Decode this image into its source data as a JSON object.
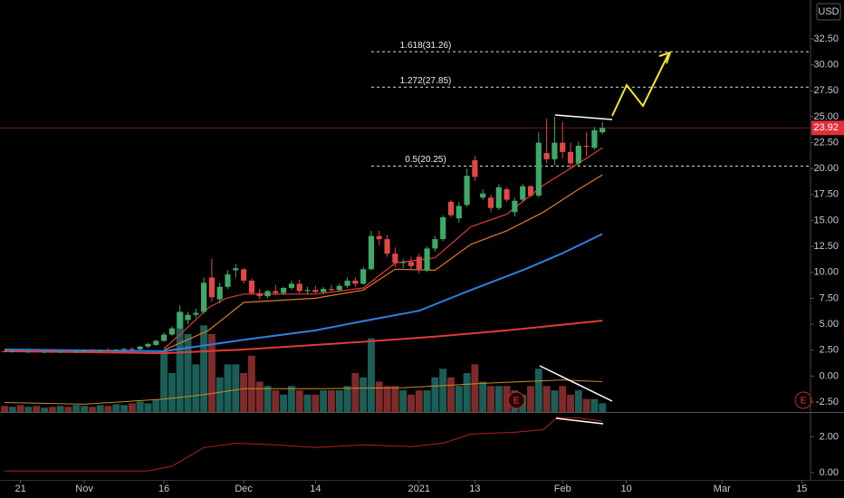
{
  "header": {
    "currency": "USD"
  },
  "chart_data": {
    "type": "candlestick",
    "xlim": [
      -0.57,
      101.1
    ],
    "xticks": [
      {
        "value": 2,
        "label": "21"
      },
      {
        "value": 10,
        "label": "Nov"
      },
      {
        "value": 20,
        "label": "16"
      },
      {
        "value": 30,
        "label": "Dec"
      },
      {
        "value": 39,
        "label": "14"
      },
      {
        "value": 52,
        "label": "2021"
      },
      {
        "value": 59,
        "label": "13"
      },
      {
        "value": 70,
        "label": "Feb"
      },
      {
        "value": 78,
        "label": "10"
      },
      {
        "value": 90,
        "label": "Mar"
      },
      {
        "value": 100,
        "label": "15"
      }
    ],
    "ylim": [
      -3.46,
      36.25
    ],
    "yticks": [
      {
        "value": -2.5,
        "label": "-2.50"
      },
      {
        "value": 0,
        "label": "0.00"
      },
      {
        "value": 2.5,
        "label": "2.50"
      },
      {
        "value": 5,
        "label": "5.00"
      },
      {
        "value": 7.5,
        "label": "7.50"
      },
      {
        "value": 10,
        "label": "10.00"
      },
      {
        "value": 12.5,
        "label": "12.50"
      },
      {
        "value": 15,
        "label": "15.00"
      },
      {
        "value": 17.5,
        "label": "17.50"
      },
      {
        "value": 20,
        "label": "20.00"
      },
      {
        "value": 22.5,
        "label": "22.50"
      },
      {
        "value": 25,
        "label": "25.00"
      },
      {
        "value": 27.5,
        "label": "27.50"
      },
      {
        "value": 30,
        "label": "30.00"
      },
      {
        "value": 32.5,
        "label": "32.50"
      }
    ],
    "up_color": "#3fa968",
    "down_color": "#e04848",
    "volume_up_color": "#1b5e57",
    "volume_down_color": "#7f2a2a",
    "candles": [
      [
        2.4,
        2.5,
        2.3,
        2.35
      ],
      [
        2.35,
        2.45,
        2.25,
        2.4
      ],
      [
        2.4,
        2.5,
        2.3,
        2.32
      ],
      [
        2.32,
        2.42,
        2.22,
        2.38
      ],
      [
        2.38,
        2.48,
        2.28,
        2.3
      ],
      [
        2.3,
        2.4,
        2.2,
        2.34
      ],
      [
        2.34,
        2.44,
        2.24,
        2.28
      ],
      [
        2.28,
        2.4,
        2.2,
        2.36
      ],
      [
        2.36,
        2.46,
        2.26,
        2.3
      ],
      [
        2.3,
        2.42,
        2.22,
        2.38
      ],
      [
        2.38,
        2.5,
        2.3,
        2.45
      ],
      [
        2.45,
        2.6,
        2.35,
        2.4
      ],
      [
        2.4,
        2.55,
        2.32,
        2.5
      ],
      [
        2.5,
        2.65,
        2.4,
        2.45
      ],
      [
        2.45,
        2.6,
        2.38,
        2.55
      ],
      [
        2.55,
        2.7,
        2.45,
        2.62
      ],
      [
        2.62,
        2.8,
        2.5,
        2.58
      ],
      [
        2.58,
        2.9,
        2.5,
        2.85
      ],
      [
        2.85,
        3.2,
        2.7,
        3.1
      ],
      [
        3.0,
        3.5,
        2.9,
        3.4
      ],
      [
        3.4,
        4.2,
        3.3,
        4.0
      ],
      [
        4.0,
        4.8,
        3.9,
        4.6
      ],
      [
        4.6,
        6.8,
        4.5,
        6.2
      ],
      [
        5.4,
        6.2,
        5.0,
        5.9
      ],
      [
        5.9,
        6.5,
        5.6,
        6.1
      ],
      [
        6.2,
        9.5,
        6.0,
        9.0
      ],
      [
        9.5,
        11.3,
        7.2,
        7.6
      ],
      [
        7.4,
        9.0,
        7.0,
        8.6
      ],
      [
        8.6,
        10.2,
        8.4,
        9.8
      ],
      [
        10.2,
        10.8,
        9.5,
        10.4
      ],
      [
        10.3,
        10.4,
        8.9,
        9.2
      ],
      [
        9.2,
        9.4,
        7.9,
        8.0
      ],
      [
        8.0,
        8.4,
        7.4,
        7.7
      ],
      [
        7.7,
        8.3,
        7.5,
        8.2
      ],
      [
        8.2,
        8.8,
        7.8,
        8.0
      ],
      [
        8.0,
        8.6,
        7.8,
        8.5
      ],
      [
        8.5,
        9.2,
        8.3,
        8.9
      ],
      [
        8.9,
        9.3,
        8.0,
        8.2
      ],
      [
        8.2,
        8.6,
        7.9,
        8.3
      ],
      [
        8.3,
        8.7,
        8.0,
        8.1
      ],
      [
        8.1,
        8.6,
        7.9,
        8.4
      ],
      [
        8.4,
        8.8,
        8.1,
        8.3
      ],
      [
        8.3,
        8.9,
        8.1,
        8.7
      ],
      [
        8.7,
        9.5,
        8.5,
        9.2
      ],
      [
        9.2,
        9.5,
        8.6,
        8.9
      ],
      [
        8.9,
        10.5,
        8.8,
        10.3
      ],
      [
        10.3,
        14.0,
        10.2,
        13.5
      ],
      [
        13.5,
        14.0,
        12.6,
        13.2
      ],
      [
        13.2,
        13.6,
        11.5,
        11.8
      ],
      [
        11.8,
        12.4,
        10.5,
        10.9
      ],
      [
        10.9,
        11.3,
        10.4,
        11.0
      ],
      [
        11.0,
        11.5,
        10.2,
        10.6
      ],
      [
        11.5,
        11.8,
        9.9,
        10.2
      ],
      [
        10.2,
        12.5,
        10.0,
        12.3
      ],
      [
        12.3,
        13.5,
        12.0,
        13.2
      ],
      [
        13.2,
        15.5,
        13.0,
        15.3
      ],
      [
        16.8,
        17.0,
        15.3,
        15.5
      ],
      [
        15.2,
        16.8,
        14.8,
        16.4
      ],
      [
        16.5,
        20.0,
        16.3,
        19.3
      ],
      [
        20.8,
        21.2,
        18.8,
        19.2
      ],
      [
        17.2,
        18.0,
        17.0,
        17.6
      ],
      [
        17.2,
        17.5,
        15.8,
        16.2
      ],
      [
        16.2,
        18.5,
        16.0,
        18.2
      ],
      [
        18.0,
        18.2,
        16.8,
        17.0
      ],
      [
        15.8,
        17.2,
        15.4,
        16.9
      ],
      [
        17.0,
        18.5,
        16.8,
        18.3
      ],
      [
        18.3,
        18.4,
        17.2,
        17.4
      ],
      [
        17.4,
        23.5,
        17.2,
        22.5
      ],
      [
        21.5,
        24.8,
        20.5,
        20.9
      ],
      [
        20.9,
        25.0,
        20.3,
        22.5
      ],
      [
        22.5,
        24.5,
        21.0,
        21.6
      ],
      [
        21.6,
        22.5,
        20.0,
        20.5
      ],
      [
        20.5,
        22.6,
        20.3,
        22.2
      ],
      [
        22.2,
        23.5,
        21.2,
        22.1
      ],
      [
        22.0,
        24.0,
        21.8,
        23.7
      ],
      [
        23.5,
        24.5,
        23.3,
        23.92
      ]
    ],
    "volume": [
      7,
      6,
      8,
      6,
      7,
      5,
      6,
      7,
      6,
      8,
      7,
      6,
      8,
      7,
      9,
      8,
      10,
      12,
      10,
      14,
      70,
      45,
      115,
      90,
      55,
      100,
      90,
      40,
      55,
      55,
      45,
      65,
      35,
      30,
      25,
      20,
      30,
      25,
      20,
      20,
      25,
      25,
      25,
      30,
      45,
      40,
      85,
      35,
      30,
      30,
      25,
      20,
      25,
      25,
      40,
      50,
      40,
      30,
      45,
      55,
      35,
      30,
      30,
      30,
      25,
      20,
      30,
      50,
      30,
      25,
      30,
      20,
      25,
      15,
      15,
      10
    ],
    "volume_ma": {
      "color": "#c98a2a",
      "x": [
        0,
        10,
        20,
        25,
        30,
        40,
        50,
        60,
        70,
        75
      ],
      "values": [
        11,
        9,
        15,
        20,
        27,
        27,
        28,
        33,
        37,
        35
      ]
    },
    "moving_averages": [
      {
        "color": "#e03a3a",
        "x": [
          20,
          22,
          25.6,
          27.8,
          30,
          39,
          45,
          49,
          54,
          58.5,
          63,
          67.6,
          72,
          75
        ],
        "values": [
          2.65,
          4.0,
          6.6,
          7.5,
          7.9,
          7.9,
          8.5,
          10.9,
          11.4,
          14.4,
          15.6,
          18.4,
          20.5,
          22.0
        ]
      },
      {
        "color": "#e0792a",
        "x": [
          20,
          25.6,
          30,
          39,
          45,
          49,
          54,
          58.5,
          63,
          67.6,
          72,
          75
        ],
        "values": [
          2.5,
          4.4,
          7.1,
          7.5,
          8.3,
          10.3,
          10.2,
          12.7,
          14.0,
          15.8,
          18.0,
          19.4
        ]
      },
      {
        "color": "#2f7fe0",
        "x": [
          0,
          20,
          30,
          39,
          45,
          52,
          58.5,
          65.3,
          69.9,
          75
        ],
        "values": [
          2.56,
          2.4,
          3.5,
          4.4,
          5.3,
          6.3,
          8.3,
          10.3,
          11.8,
          13.7
        ]
      },
      {
        "color": "#e03a3a",
        "x": [
          0,
          20,
          30,
          45,
          54,
          63,
          75
        ],
        "values": [
          2.4,
          2.2,
          2.56,
          3.3,
          3.8,
          4.4,
          5.35
        ]
      }
    ],
    "fib_levels": [
      {
        "value": 31.26,
        "label": "1.618(31.26)"
      },
      {
        "value": 27.85,
        "label": "1.272(27.85)"
      },
      {
        "value": 20.25,
        "label": "0.5(20.25)"
      }
    ],
    "last_price": 23.92,
    "earnings_markers": [
      {
        "x": 64.2,
        "label": "E"
      },
      {
        "x": 100.2,
        "label": "E"
      }
    ],
    "indicator": {
      "color": "#b52020",
      "ylim": [
        -0.4,
        3.33
      ],
      "yticks": [
        {
          "value": 0,
          "label": "0.00"
        },
        {
          "value": 2,
          "label": "2.00"
        }
      ],
      "x": [
        0,
        18,
        21,
        25,
        29,
        34,
        39,
        45,
        51,
        55,
        58.5,
        64,
        67.6,
        69.3,
        72,
        75
      ],
      "values": [
        0.1,
        0.1,
        0.36,
        1.4,
        1.64,
        1.55,
        1.4,
        1.55,
        1.45,
        1.64,
        2.15,
        2.25,
        2.4,
        3.08,
        3.05,
        2.87
      ]
    }
  }
}
